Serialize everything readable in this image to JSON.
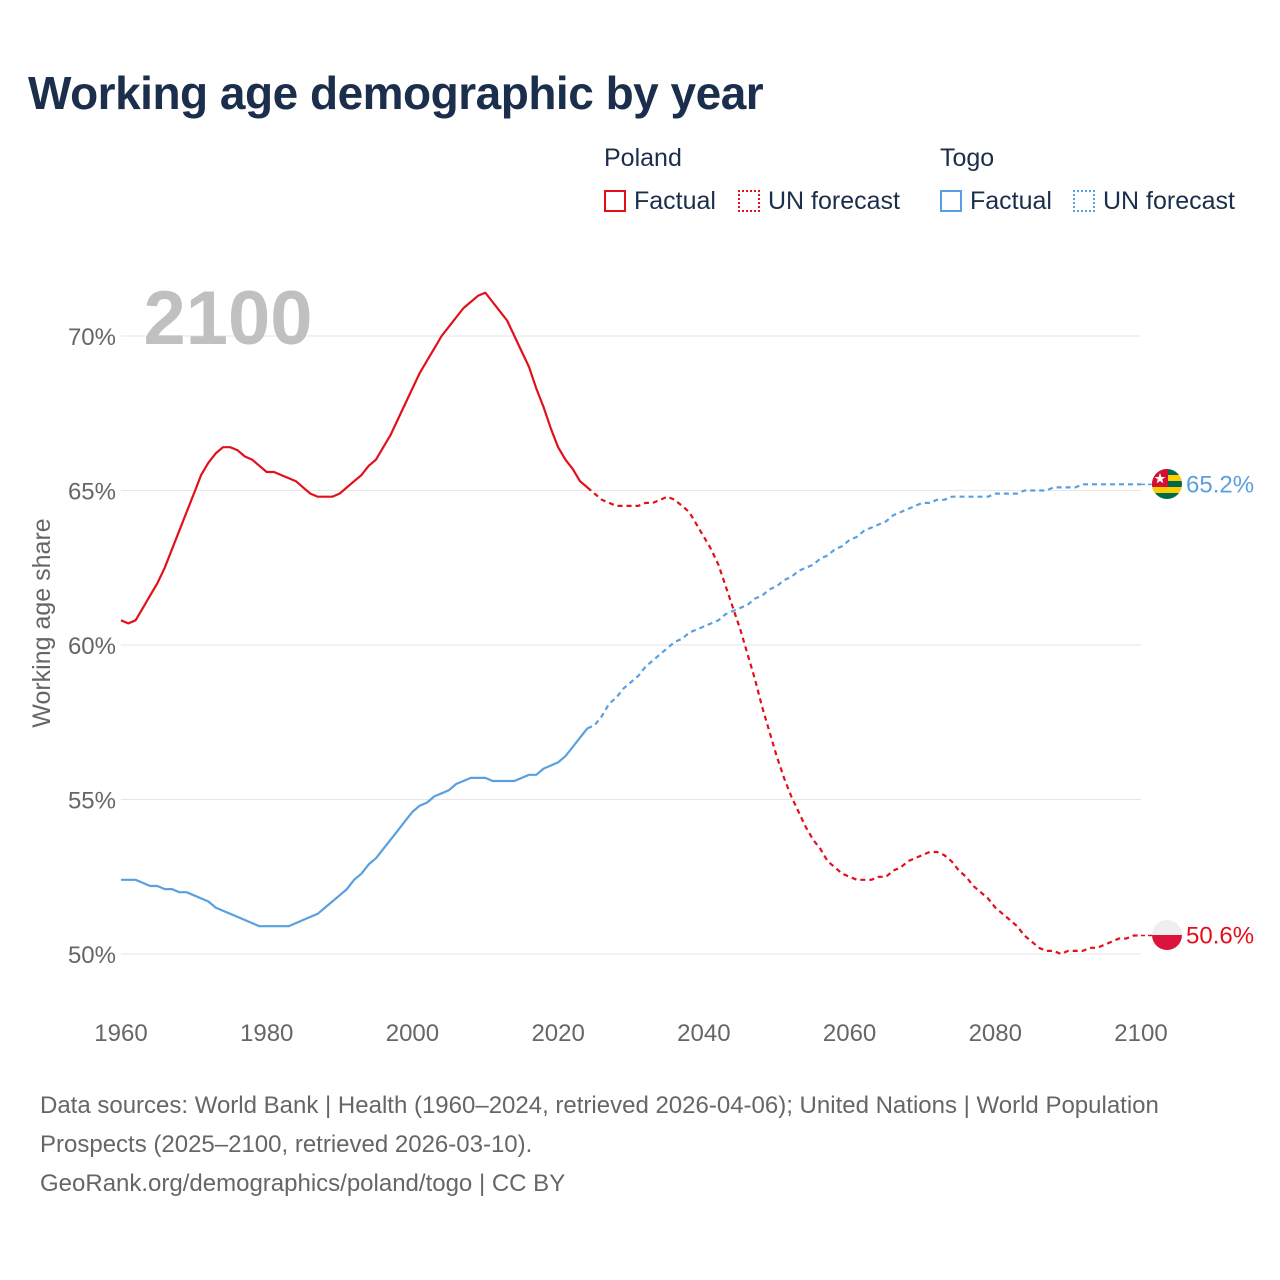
{
  "chart_data": {
    "type": "line",
    "title": "Working age demographic by year",
    "ylabel": "Working age share",
    "xlabel": "",
    "xlim": [
      1960,
      2100
    ],
    "ylim": [
      48,
      72.5
    ],
    "x_ticks": [
      "1960",
      "1980",
      "2000",
      "2020",
      "2040",
      "2060",
      "2080",
      "2100"
    ],
    "y_ticks": [
      {
        "value": 50,
        "label": "50%"
      },
      {
        "value": 55,
        "label": "55%"
      },
      {
        "value": 60,
        "label": "60%"
      },
      {
        "value": 65,
        "label": "65%"
      },
      {
        "value": 70,
        "label": "70%"
      }
    ],
    "year_overlay": "2100",
    "factual_end_year": 2024,
    "series": [
      {
        "name": "Poland",
        "color": "#e3101c",
        "end_label": "50.6%",
        "points": [
          [
            1960,
            60.8
          ],
          [
            1961,
            60.7
          ],
          [
            1962,
            60.8
          ],
          [
            1963,
            61.2
          ],
          [
            1964,
            61.6
          ],
          [
            1965,
            62.0
          ],
          [
            1966,
            62.5
          ],
          [
            1967,
            63.1
          ],
          [
            1968,
            63.7
          ],
          [
            1969,
            64.3
          ],
          [
            1970,
            64.9
          ],
          [
            1971,
            65.5
          ],
          [
            1972,
            65.9
          ],
          [
            1973,
            66.2
          ],
          [
            1974,
            66.4
          ],
          [
            1975,
            66.4
          ],
          [
            1976,
            66.3
          ],
          [
            1977,
            66.1
          ],
          [
            1978,
            66.0
          ],
          [
            1979,
            65.8
          ],
          [
            1980,
            65.6
          ],
          [
            1981,
            65.6
          ],
          [
            1982,
            65.5
          ],
          [
            1983,
            65.4
          ],
          [
            1984,
            65.3
          ],
          [
            1985,
            65.1
          ],
          [
            1986,
            64.9
          ],
          [
            1987,
            64.8
          ],
          [
            1988,
            64.8
          ],
          [
            1989,
            64.8
          ],
          [
            1990,
            64.9
          ],
          [
            1991,
            65.1
          ],
          [
            1992,
            65.3
          ],
          [
            1993,
            65.5
          ],
          [
            1994,
            65.8
          ],
          [
            1995,
            66.0
          ],
          [
            1996,
            66.4
          ],
          [
            1997,
            66.8
          ],
          [
            1998,
            67.3
          ],
          [
            1999,
            67.8
          ],
          [
            2000,
            68.3
          ],
          [
            2001,
            68.8
          ],
          [
            2002,
            69.2
          ],
          [
            2003,
            69.6
          ],
          [
            2004,
            70.0
          ],
          [
            2005,
            70.3
          ],
          [
            2006,
            70.6
          ],
          [
            2007,
            70.9
          ],
          [
            2008,
            71.1
          ],
          [
            2009,
            71.3
          ],
          [
            2010,
            71.4
          ],
          [
            2011,
            71.1
          ],
          [
            2012,
            70.8
          ],
          [
            2013,
            70.5
          ],
          [
            2014,
            70.0
          ],
          [
            2015,
            69.5
          ],
          [
            2016,
            69.0
          ],
          [
            2017,
            68.3
          ],
          [
            2018,
            67.7
          ],
          [
            2019,
            67.0
          ],
          [
            2020,
            66.4
          ],
          [
            2021,
            66.0
          ],
          [
            2022,
            65.7
          ],
          [
            2023,
            65.3
          ],
          [
            2024,
            65.1
          ],
          [
            2025,
            64.9
          ],
          [
            2026,
            64.7
          ],
          [
            2027,
            64.6
          ],
          [
            2028,
            64.5
          ],
          [
            2029,
            64.5
          ],
          [
            2030,
            64.5
          ],
          [
            2031,
            64.5
          ],
          [
            2032,
            64.6
          ],
          [
            2033,
            64.6
          ],
          [
            2034,
            64.7
          ],
          [
            2035,
            64.8
          ],
          [
            2036,
            64.7
          ],
          [
            2037,
            64.5
          ],
          [
            2038,
            64.3
          ],
          [
            2039,
            63.9
          ],
          [
            2040,
            63.5
          ],
          [
            2041,
            63.1
          ],
          [
            2042,
            62.6
          ],
          [
            2043,
            61.9
          ],
          [
            2044,
            61.2
          ],
          [
            2045,
            60.5
          ],
          [
            2046,
            59.7
          ],
          [
            2047,
            58.9
          ],
          [
            2048,
            58.0
          ],
          [
            2049,
            57.2
          ],
          [
            2050,
            56.4
          ],
          [
            2051,
            55.7
          ],
          [
            2052,
            55.1
          ],
          [
            2053,
            54.6
          ],
          [
            2054,
            54.1
          ],
          [
            2055,
            53.7
          ],
          [
            2056,
            53.4
          ],
          [
            2057,
            53.0
          ],
          [
            2058,
            52.8
          ],
          [
            2059,
            52.6
          ],
          [
            2060,
            52.5
          ],
          [
            2061,
            52.4
          ],
          [
            2062,
            52.4
          ],
          [
            2063,
            52.4
          ],
          [
            2064,
            52.5
          ],
          [
            2065,
            52.5
          ],
          [
            2066,
            52.7
          ],
          [
            2067,
            52.8
          ],
          [
            2068,
            53.0
          ],
          [
            2069,
            53.1
          ],
          [
            2070,
            53.2
          ],
          [
            2071,
            53.3
          ],
          [
            2072,
            53.3
          ],
          [
            2073,
            53.2
          ],
          [
            2074,
            53.0
          ],
          [
            2075,
            52.7
          ],
          [
            2076,
            52.5
          ],
          [
            2077,
            52.2
          ],
          [
            2078,
            52.0
          ],
          [
            2079,
            51.8
          ],
          [
            2080,
            51.5
          ],
          [
            2081,
            51.3
          ],
          [
            2082,
            51.1
          ],
          [
            2083,
            50.9
          ],
          [
            2084,
            50.6
          ],
          [
            2085,
            50.4
          ],
          [
            2086,
            50.2
          ],
          [
            2087,
            50.1
          ],
          [
            2088,
            50.1
          ],
          [
            2089,
            50.0
          ],
          [
            2090,
            50.1
          ],
          [
            2091,
            50.1
          ],
          [
            2092,
            50.1
          ],
          [
            2093,
            50.2
          ],
          [
            2094,
            50.2
          ],
          [
            2095,
            50.3
          ],
          [
            2096,
            50.4
          ],
          [
            2097,
            50.5
          ],
          [
            2098,
            50.5
          ],
          [
            2099,
            50.6
          ],
          [
            2100,
            50.6
          ]
        ]
      },
      {
        "name": "Togo",
        "color": "#5aa0e0",
        "end_label": "65.2%",
        "points": [
          [
            1960,
            52.4
          ],
          [
            1961,
            52.4
          ],
          [
            1962,
            52.4
          ],
          [
            1963,
            52.3
          ],
          [
            1964,
            52.2
          ],
          [
            1965,
            52.2
          ],
          [
            1966,
            52.1
          ],
          [
            1967,
            52.1
          ],
          [
            1968,
            52.0
          ],
          [
            1969,
            52.0
          ],
          [
            1970,
            51.9
          ],
          [
            1971,
            51.8
          ],
          [
            1972,
            51.7
          ],
          [
            1973,
            51.5
          ],
          [
            1974,
            51.4
          ],
          [
            1975,
            51.3
          ],
          [
            1976,
            51.2
          ],
          [
            1977,
            51.1
          ],
          [
            1978,
            51.0
          ],
          [
            1979,
            50.9
          ],
          [
            1980,
            50.9
          ],
          [
            1981,
            50.9
          ],
          [
            1982,
            50.9
          ],
          [
            1983,
            50.9
          ],
          [
            1984,
            51.0
          ],
          [
            1985,
            51.1
          ],
          [
            1986,
            51.2
          ],
          [
            1987,
            51.3
          ],
          [
            1988,
            51.5
          ],
          [
            1989,
            51.7
          ],
          [
            1990,
            51.9
          ],
          [
            1991,
            52.1
          ],
          [
            1992,
            52.4
          ],
          [
            1993,
            52.6
          ],
          [
            1994,
            52.9
          ],
          [
            1995,
            53.1
          ],
          [
            1996,
            53.4
          ],
          [
            1997,
            53.7
          ],
          [
            1998,
            54.0
          ],
          [
            1999,
            54.3
          ],
          [
            2000,
            54.6
          ],
          [
            2001,
            54.8
          ],
          [
            2002,
            54.9
          ],
          [
            2003,
            55.1
          ],
          [
            2004,
            55.2
          ],
          [
            2005,
            55.3
          ],
          [
            2006,
            55.5
          ],
          [
            2007,
            55.6
          ],
          [
            2008,
            55.7
          ],
          [
            2009,
            55.7
          ],
          [
            2010,
            55.7
          ],
          [
            2011,
            55.6
          ],
          [
            2012,
            55.6
          ],
          [
            2013,
            55.6
          ],
          [
            2014,
            55.6
          ],
          [
            2015,
            55.7
          ],
          [
            2016,
            55.8
          ],
          [
            2017,
            55.8
          ],
          [
            2018,
            56.0
          ],
          [
            2019,
            56.1
          ],
          [
            2020,
            56.2
          ],
          [
            2021,
            56.4
          ],
          [
            2022,
            56.7
          ],
          [
            2023,
            57.0
          ],
          [
            2024,
            57.3
          ],
          [
            2025,
            57.4
          ],
          [
            2026,
            57.7
          ],
          [
            2027,
            58.1
          ],
          [
            2028,
            58.3
          ],
          [
            2029,
            58.6
          ],
          [
            2030,
            58.8
          ],
          [
            2031,
            59.0
          ],
          [
            2032,
            59.3
          ],
          [
            2033,
            59.5
          ],
          [
            2034,
            59.7
          ],
          [
            2035,
            59.9
          ],
          [
            2036,
            60.1
          ],
          [
            2037,
            60.2
          ],
          [
            2038,
            60.4
          ],
          [
            2039,
            60.5
          ],
          [
            2040,
            60.6
          ],
          [
            2041,
            60.7
          ],
          [
            2042,
            60.8
          ],
          [
            2043,
            61.0
          ],
          [
            2044,
            61.1
          ],
          [
            2045,
            61.2
          ],
          [
            2046,
            61.3
          ],
          [
            2047,
            61.5
          ],
          [
            2048,
            61.6
          ],
          [
            2049,
            61.8
          ],
          [
            2050,
            61.9
          ],
          [
            2051,
            62.1
          ],
          [
            2052,
            62.2
          ],
          [
            2053,
            62.4
          ],
          [
            2054,
            62.5
          ],
          [
            2055,
            62.6
          ],
          [
            2056,
            62.8
          ],
          [
            2057,
            62.9
          ],
          [
            2058,
            63.1
          ],
          [
            2059,
            63.2
          ],
          [
            2060,
            63.4
          ],
          [
            2061,
            63.5
          ],
          [
            2062,
            63.7
          ],
          [
            2063,
            63.8
          ],
          [
            2064,
            63.9
          ],
          [
            2065,
            64.0
          ],
          [
            2066,
            64.2
          ],
          [
            2067,
            64.3
          ],
          [
            2068,
            64.4
          ],
          [
            2069,
            64.5
          ],
          [
            2070,
            64.6
          ],
          [
            2071,
            64.6
          ],
          [
            2072,
            64.7
          ],
          [
            2073,
            64.7
          ],
          [
            2074,
            64.8
          ],
          [
            2075,
            64.8
          ],
          [
            2076,
            64.8
          ],
          [
            2077,
            64.8
          ],
          [
            2078,
            64.8
          ],
          [
            2079,
            64.8
          ],
          [
            2080,
            64.9
          ],
          [
            2081,
            64.9
          ],
          [
            2082,
            64.9
          ],
          [
            2083,
            64.9
          ],
          [
            2084,
            65.0
          ],
          [
            2085,
            65.0
          ],
          [
            2086,
            65.0
          ],
          [
            2087,
            65.0
          ],
          [
            2088,
            65.1
          ],
          [
            2089,
            65.1
          ],
          [
            2090,
            65.1
          ],
          [
            2091,
            65.1
          ],
          [
            2092,
            65.2
          ],
          [
            2093,
            65.2
          ],
          [
            2094,
            65.2
          ],
          [
            2095,
            65.2
          ],
          [
            2096,
            65.2
          ],
          [
            2097,
            65.2
          ],
          [
            2098,
            65.2
          ],
          [
            2099,
            65.2
          ],
          [
            2100,
            65.2
          ]
        ]
      }
    ]
  },
  "legend": {
    "groups": [
      {
        "title": "Poland",
        "factual": "Factual",
        "forecast": "UN forecast",
        "color": "#e3101c"
      },
      {
        "title": "Togo",
        "factual": "Factual",
        "forecast": "UN forecast",
        "color": "#5aa0e0"
      }
    ]
  },
  "footer": {
    "sources": "Data sources: World Bank | Health (1960–2024, retrieved 2026-04-06); United Nations | World Population Prospects (2025–2100, retrieved 2026-03-10).",
    "credit": "GeoRank.org/demographics/poland/togo | CC BY"
  }
}
